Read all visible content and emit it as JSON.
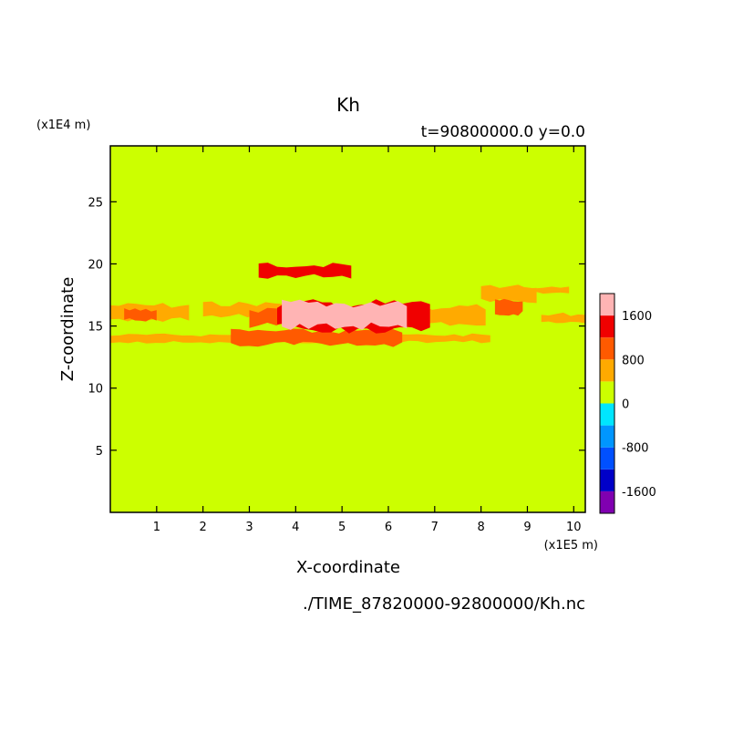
{
  "chart_data": {
    "type": "heatmap",
    "title": "Kh",
    "subtitle": "t=90800000.0 y=0.0",
    "xlabel": "X-coordinate",
    "ylabel": "Z-coordinate",
    "x_unit": "(x1E5 m)",
    "y_unit": "(x1E4 m)",
    "source_file": "./TIME_87820000-92800000/Kh.nc",
    "xlim": [
      0,
      10.25
    ],
    "ylim": [
      0,
      29.5
    ],
    "x_ticks": [
      1,
      2,
      3,
      4,
      5,
      6,
      7,
      8,
      9,
      10
    ],
    "y_ticks": [
      5,
      10,
      15,
      20,
      25
    ],
    "background_value_color": "#ccff00",
    "colorbar": {
      "levels": [
        -2000,
        -1600,
        -1200,
        -800,
        -400,
        0,
        400,
        800,
        1200,
        1600,
        2000
      ],
      "colors": [
        "#8000b0",
        "#0000c8",
        "#0050ff",
        "#0096ff",
        "#00e6ff",
        "#ccff00",
        "#ffaa00",
        "#ff5a00",
        "#f00000",
        "#ffb4b4"
      ],
      "tick_labels": [
        {
          "value": -1600,
          "text": "-1600"
        },
        {
          "value": -800,
          "text": "-800"
        },
        {
          "value": 0,
          "text": "0"
        },
        {
          "value": 800,
          "text": "800"
        },
        {
          "value": 1600,
          "text": "1600"
        }
      ]
    },
    "regions": [
      {
        "value": 600,
        "x": [
          0.0,
          1.7
        ],
        "z": [
          15.3,
          16.9
        ]
      },
      {
        "value": 600,
        "x": [
          2.0,
          4.7
        ],
        "z": [
          15.6,
          17.0
        ]
      },
      {
        "value": 600,
        "x": [
          0.0,
          8.2
        ],
        "z": [
          13.6,
          14.4
        ]
      },
      {
        "value": 600,
        "x": [
          5.6,
          8.1
        ],
        "z": [
          15.0,
          16.8
        ]
      },
      {
        "value": 600,
        "x": [
          8.0,
          9.2
        ],
        "z": [
          16.6,
          18.6
        ]
      },
      {
        "value": 600,
        "x": [
          9.3,
          10.25
        ],
        "z": [
          15.1,
          16.1
        ]
      },
      {
        "value": 600,
        "x": [
          8.6,
          9.9
        ],
        "z": [
          17.6,
          18.2
        ]
      },
      {
        "value": 1000,
        "x": [
          0.3,
          1.0
        ],
        "z": [
          15.3,
          16.5
        ]
      },
      {
        "value": 1000,
        "x": [
          2.6,
          6.3
        ],
        "z": [
          13.3,
          14.8
        ]
      },
      {
        "value": 1000,
        "x": [
          3.0,
          6.5
        ],
        "z": [
          14.8,
          16.6
        ]
      },
      {
        "value": 1400,
        "x": [
          3.6,
          6.9
        ],
        "z": [
          14.4,
          17.2
        ]
      },
      {
        "value": 1400,
        "x": [
          3.2,
          5.2
        ],
        "z": [
          18.8,
          20.1
        ]
      },
      {
        "value": 1000,
        "x": [
          8.3,
          8.9
        ],
        "z": [
          15.8,
          17.2
        ]
      },
      {
        "value": 1800,
        "x": [
          3.7,
          6.4
        ],
        "z": [
          14.6,
          17.2
        ]
      }
    ]
  }
}
